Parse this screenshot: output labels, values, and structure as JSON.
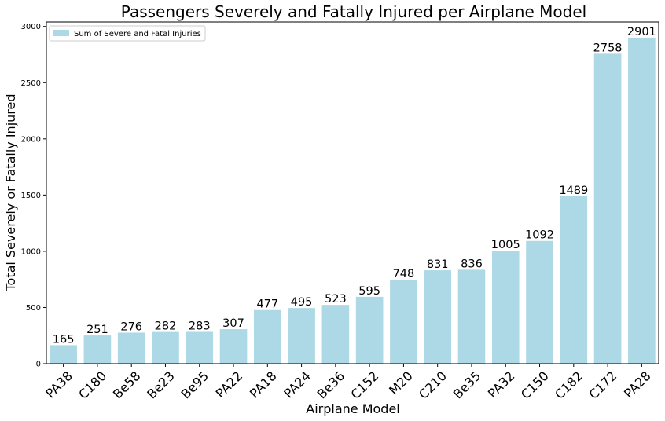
{
  "chart_data": {
    "type": "bar",
    "title": "Passengers Severely and Fatally Injured per Airplane Model",
    "xlabel": "Airplane Model",
    "ylabel": "Total Severely or Fatally Injured",
    "categories": [
      "PA38",
      "C180",
      "Be58",
      "Be23",
      "Be95",
      "PA22",
      "PA18",
      "PA24",
      "Be36",
      "C152",
      "M20",
      "C210",
      "Be35",
      "PA32",
      "C150",
      "C182",
      "C172",
      "PA28"
    ],
    "series": [
      {
        "name": "Sum of Severe and Fatal Injuries",
        "values": [
          165,
          251,
          276,
          282,
          283,
          307,
          477,
          495,
          523,
          595,
          748,
          831,
          836,
          1005,
          1092,
          1489,
          2758,
          2901
        ],
        "color": "#add8e6"
      }
    ],
    "ylim": [
      0,
      3040
    ],
    "yticks": [
      0,
      500,
      1000,
      1500,
      2000,
      2500,
      3000
    ],
    "grid": false,
    "legend_position": "top-left"
  }
}
